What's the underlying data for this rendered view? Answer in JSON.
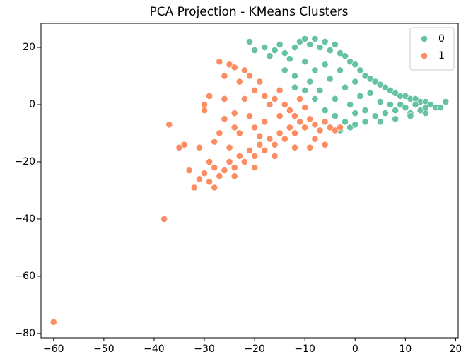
{
  "chart_data": {
    "type": "scatter",
    "title": "PCA Projection - KMeans Clusters",
    "xlim": [
      -62.5,
      20.5
    ],
    "ylim": [
      -81.5,
      28.4
    ],
    "xticks": [
      {
        "value": -60,
        "label": "−60"
      },
      {
        "value": -50,
        "label": "−50"
      },
      {
        "value": -40,
        "label": "−40"
      },
      {
        "value": -30,
        "label": "−30"
      },
      {
        "value": -20,
        "label": "−20"
      },
      {
        "value": -10,
        "label": "−10"
      },
      0,
      10,
      20
    ],
    "yticks": [
      {
        "value": -80,
        "label": "−80"
      },
      {
        "value": -60,
        "label": "−60"
      },
      {
        "value": -40,
        "label": "−40"
      },
      {
        "value": -20,
        "label": "−20"
      },
      0,
      20
    ],
    "legend": "upper right",
    "grid": false,
    "series": [
      {
        "name": "0",
        "color": "#66c2a5",
        "x": [
          -21,
          -20,
          -18,
          -17,
          -16,
          -15,
          -14,
          -13,
          -12,
          -11,
          -10,
          -9,
          -8,
          -7,
          -6,
          -5,
          -4,
          -3,
          -2,
          -1,
          0,
          1,
          2,
          3,
          4,
          5,
          6,
          7,
          8,
          9,
          10,
          11,
          12,
          13,
          14,
          15,
          16,
          17,
          18,
          -14,
          -12,
          -10,
          -9,
          -8,
          -7,
          -6,
          -5,
          -4,
          -3,
          -2,
          -1,
          0,
          0,
          1,
          2,
          3,
          4,
          5,
          6,
          7,
          8,
          9,
          10,
          11,
          12,
          13,
          14,
          -2,
          -1,
          0,
          2,
          5,
          8,
          11,
          14,
          -6,
          -8,
          -10,
          -12,
          -4,
          -3
        ],
        "values": [
          22,
          19,
          20,
          17,
          19,
          21,
          18,
          16,
          20,
          22,
          23,
          21,
          23,
          20,
          22,
          19,
          21,
          18,
          17,
          15,
          14,
          12,
          10,
          9,
          8,
          7,
          6,
          5,
          4,
          3,
          3,
          2,
          2,
          1,
          1,
          0,
          -1,
          -1,
          1,
          12,
          10,
          15,
          8,
          12,
          5,
          14,
          9,
          2,
          12,
          6,
          0,
          8,
          -3,
          3,
          -2,
          4,
          -4,
          1,
          -3,
          0,
          -2,
          0,
          -1,
          -3,
          0,
          -2,
          -1,
          -6,
          -8,
          -7,
          -6,
          -6,
          -5,
          -4,
          -3,
          -2,
          2,
          5,
          6,
          -4,
          -9
        ]
      },
      {
        "name": "1",
        "color": "#fc8d62",
        "x": [
          -60,
          -38,
          -37,
          -35,
          -34,
          -30,
          -30,
          -29,
          -31,
          -32,
          -33,
          -31,
          -30,
          -29,
          -28,
          -27,
          -28,
          -26,
          -25,
          -24,
          -23,
          -22,
          -21,
          -20,
          -19,
          -18,
          -17,
          -16,
          -15,
          -14,
          -13,
          -12,
          -11,
          -10,
          -9,
          -8,
          -7,
          -6,
          -5,
          -4,
          -3,
          -8,
          -12,
          -16,
          -20,
          -24,
          -27,
          -25,
          -24,
          -26,
          -23,
          -22,
          -21,
          -20,
          -19,
          -18,
          -17,
          -16,
          -15,
          -14,
          -13,
          -12,
          -11,
          -10,
          -22,
          -24,
          -26,
          -27,
          -25,
          -23,
          -20,
          -18,
          -28,
          -26,
          -24,
          -21,
          -19,
          -15,
          -9,
          -6,
          -29
        ],
        "values": [
          -76,
          -40,
          -7,
          -15,
          -14,
          0,
          -2,
          3,
          -15,
          -29,
          -23,
          -26,
          -24,
          -27,
          -29,
          -25,
          -22,
          -23,
          -20,
          -22,
          -18,
          -20,
          -16,
          -18,
          -14,
          -16,
          -12,
          -14,
          -10,
          -12,
          -8,
          -10,
          -6,
          -8,
          -5,
          -7,
          -9,
          -6,
          -8,
          -9,
          -8,
          -12,
          -15,
          -18,
          -22,
          -25,
          15,
          14,
          13,
          10,
          8,
          12,
          10,
          5,
          8,
          3,
          0,
          2,
          5,
          0,
          -2,
          -4,
          2,
          -1,
          2,
          -3,
          -5,
          -10,
          -15,
          -10,
          -8,
          -6,
          -13,
          2,
          -8,
          -4,
          -11,
          -4,
          -15,
          -14,
          -20
        ]
      }
    ]
  }
}
